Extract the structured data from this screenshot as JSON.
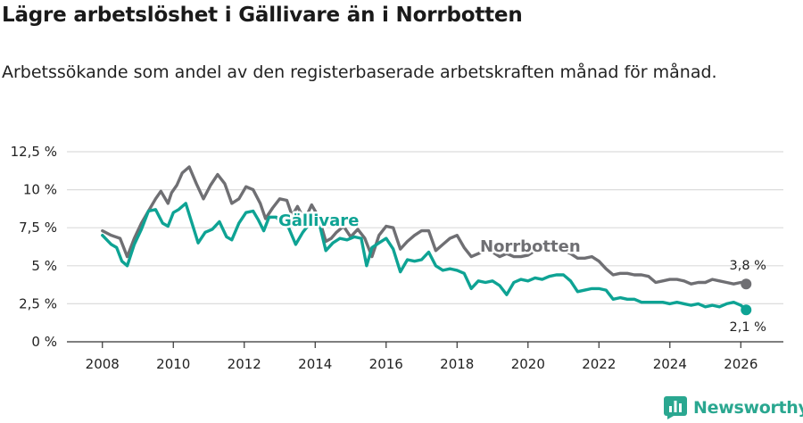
{
  "title": "Lägre arbetslöshet i Gällivare än i Norrbotten",
  "subtitle": "Arbetssökande som andel av den registerbaserade arbetskraften månad för månad.",
  "brand": {
    "name": "Newsworthy",
    "icon": "bar-chart-logo-icon",
    "color": "#2aa790"
  },
  "colors": {
    "gallivare": "#0ea394",
    "norrbotten": "#6f6f73",
    "grid": "#dcdcdc",
    "axis": "#333333"
  },
  "chart_data": {
    "type": "line",
    "title": "Lägre arbetslöshet i Gällivare än i Norrbotten",
    "xlabel": "",
    "ylabel": "",
    "xlim": [
      2007.0,
      2027.2
    ],
    "ylim": [
      0,
      12.5
    ],
    "x_ticks": [
      2008,
      2010,
      2012,
      2014,
      2016,
      2018,
      2020,
      2022,
      2024,
      2026
    ],
    "x_tick_labels": [
      "2008",
      "2010",
      "2012",
      "2014",
      "2016",
      "2018",
      "2020",
      "2022",
      "2024",
      "2026"
    ],
    "y_ticks": [
      0,
      2.5,
      5,
      7.5,
      10,
      12.5
    ],
    "y_tick_labels": [
      "0 %",
      "2,5 %",
      "5 %",
      "7,5 %",
      "10 %",
      "12,5 %"
    ],
    "grid": true,
    "series": [
      {
        "name": "Norrbotten",
        "label": "Norrbotten",
        "end_label": "3,8 %",
        "x": [
          2008.0,
          2008.25,
          2008.5,
          2008.7,
          2008.9,
          2009.1,
          2009.3,
          2009.5,
          2009.65,
          2009.85,
          2009.95,
          2010.1,
          2010.25,
          2010.45,
          2010.65,
          2010.85,
          2011.05,
          2011.25,
          2011.45,
          2011.65,
          2011.85,
          2012.05,
          2012.25,
          2012.45,
          2012.6,
          2012.8,
          2013.0,
          2013.2,
          2013.35,
          2013.5,
          2013.7,
          2013.9,
          2014.1,
          2014.3,
          2014.45,
          2014.6,
          2014.8,
          2015.0,
          2015.2,
          2015.4,
          2015.6,
          2015.8,
          2016.0,
          2016.2,
          2016.4,
          2016.6,
          2016.8,
          2017.0,
          2017.2,
          2017.4,
          2017.6,
          2017.8,
          2018.0,
          2018.2,
          2018.4,
          2018.6,
          2018.8,
          2019.0,
          2019.2,
          2019.4,
          2019.6,
          2019.8,
          2020.0,
          2020.2,
          2020.4,
          2020.6,
          2020.8,
          2021.0,
          2021.2,
          2021.4,
          2021.6,
          2021.8,
          2022.0,
          2022.2,
          2022.4,
          2022.6,
          2022.8,
          2023.0,
          2023.2,
          2023.4,
          2023.6,
          2023.8,
          2024.0,
          2024.2,
          2024.4,
          2024.6,
          2024.8,
          2025.0,
          2025.2,
          2025.4,
          2025.6,
          2025.8,
          2026.0,
          2026.15
        ],
        "values": [
          7.3,
          7.0,
          6.8,
          5.6,
          6.8,
          7.8,
          8.6,
          9.4,
          9.9,
          9.1,
          9.8,
          10.3,
          11.1,
          11.5,
          10.4,
          9.4,
          10.3,
          11.0,
          10.4,
          9.1,
          9.4,
          10.2,
          10.0,
          9.1,
          8.1,
          8.8,
          9.4,
          9.3,
          8.3,
          8.9,
          8.0,
          9.0,
          8.2,
          6.6,
          6.8,
          7.2,
          7.6,
          6.9,
          7.4,
          6.8,
          5.6,
          7.0,
          7.6,
          7.5,
          6.1,
          6.6,
          7.0,
          7.3,
          7.3,
          6.0,
          6.4,
          6.8,
          7.0,
          6.2,
          5.6,
          5.8,
          6.0,
          5.9,
          5.6,
          5.8,
          5.6,
          5.6,
          5.7,
          6.0,
          6.3,
          5.9,
          6.1,
          6.0,
          5.8,
          5.5,
          5.5,
          5.6,
          5.3,
          4.8,
          4.4,
          4.5,
          4.5,
          4.4,
          4.4,
          4.3,
          3.9,
          4.0,
          4.1,
          4.1,
          4.0,
          3.8,
          3.9,
          3.9,
          4.1,
          4.0,
          3.9,
          3.8,
          3.9,
          3.8
        ]
      },
      {
        "name": "Gällivare",
        "label": "Gällivare",
        "end_label": "2,1 %",
        "x": [
          2008.0,
          2008.25,
          2008.4,
          2008.55,
          2008.7,
          2008.9,
          2009.1,
          2009.3,
          2009.5,
          2009.7,
          2009.85,
          2010.0,
          2010.15,
          2010.35,
          2010.5,
          2010.7,
          2010.9,
          2011.1,
          2011.3,
          2011.5,
          2011.65,
          2011.85,
          2012.05,
          2012.25,
          2012.4,
          2012.55,
          2012.7,
          2012.9,
          2013.05,
          2013.25,
          2013.45,
          2013.65,
          2013.85,
          2014.05,
          2014.3,
          2014.5,
          2014.7,
          2014.9,
          2015.1,
          2015.3,
          2015.45,
          2015.6,
          2015.8,
          2016.0,
          2016.2,
          2016.4,
          2016.6,
          2016.8,
          2017.0,
          2017.2,
          2017.4,
          2017.6,
          2017.8,
          2018.0,
          2018.2,
          2018.4,
          2018.6,
          2018.8,
          2019.0,
          2019.2,
          2019.4,
          2019.6,
          2019.8,
          2020.0,
          2020.2,
          2020.4,
          2020.6,
          2020.8,
          2021.0,
          2021.2,
          2021.4,
          2021.6,
          2021.8,
          2022.0,
          2022.2,
          2022.4,
          2022.6,
          2022.8,
          2023.0,
          2023.2,
          2023.4,
          2023.6,
          2023.8,
          2024.0,
          2024.2,
          2024.4,
          2024.6,
          2024.8,
          2025.0,
          2025.2,
          2025.4,
          2025.6,
          2025.8,
          2026.0,
          2026.15
        ],
        "values": [
          7.0,
          6.4,
          6.2,
          5.3,
          5.0,
          6.4,
          7.4,
          8.6,
          8.7,
          7.8,
          7.6,
          8.5,
          8.7,
          9.1,
          8.0,
          6.5,
          7.2,
          7.4,
          7.9,
          6.9,
          6.7,
          7.8,
          8.5,
          8.6,
          8.0,
          7.3,
          8.2,
          8.2,
          7.8,
          7.5,
          6.4,
          7.2,
          7.8,
          8.4,
          6.0,
          6.5,
          6.8,
          6.7,
          6.9,
          6.8,
          5.0,
          6.2,
          6.5,
          6.8,
          6.1,
          4.6,
          5.4,
          5.3,
          5.4,
          5.9,
          5.0,
          4.7,
          4.8,
          4.7,
          4.5,
          3.5,
          4.0,
          3.9,
          4.0,
          3.7,
          3.1,
          3.9,
          4.1,
          4.0,
          4.2,
          4.1,
          4.3,
          4.4,
          4.4,
          4.0,
          3.3,
          3.4,
          3.5,
          3.5,
          3.4,
          2.8,
          2.9,
          2.8,
          2.8,
          2.6,
          2.6,
          2.6,
          2.6,
          2.5,
          2.6,
          2.5,
          2.4,
          2.5,
          2.3,
          2.4,
          2.3,
          2.5,
          2.6,
          2.4,
          2.1
        ]
      }
    ]
  }
}
